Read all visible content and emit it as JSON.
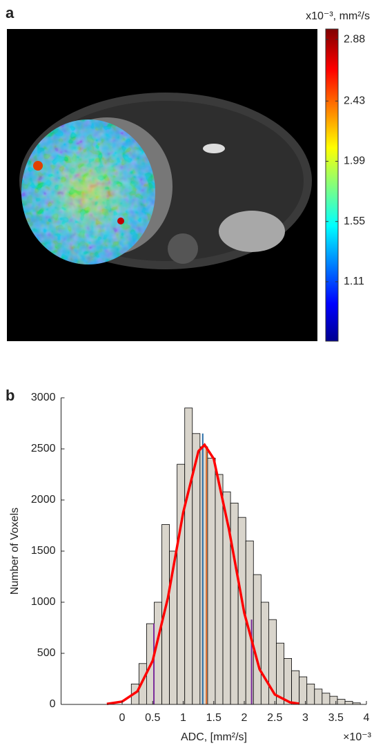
{
  "chart_data": [
    {
      "type": "image",
      "panel_label": "a",
      "colorbar_title": "x10⁻³, mm²/s",
      "clim": [
        0.676,
        2.956
      ],
      "cticks": [
        1.11,
        1.55,
        1.99,
        2.43,
        2.88
      ]
    },
    {
      "type": "histogram",
      "panel_label": "b",
      "x_label": "ADC, [mm²/s]",
      "y_label": "Number of Voxels",
      "x_multiplier": "×10⁻³",
      "color": "#d9d5cc",
      "edgecolor": "#000000",
      "bins": [
        0.15,
        0.275,
        0.4,
        0.525,
        0.65,
        0.775,
        0.9,
        1.025,
        1.15,
        1.275,
        1.4,
        1.525,
        1.65,
        1.775,
        1.9,
        2.025,
        2.15,
        2.275,
        2.4,
        2.525,
        2.65,
        2.775,
        2.9,
        3.025,
        3.15,
        3.275,
        3.4,
        3.525,
        3.65,
        3.775,
        3.9
      ],
      "values": [
        200,
        400,
        790,
        1000,
        1760,
        1500,
        2350,
        2900,
        2650,
        2520,
        2410,
        2250,
        2080,
        1970,
        1830,
        1600,
        1270,
        1000,
        830,
        600,
        450,
        330,
        270,
        200,
        150,
        110,
        80,
        50,
        30,
        15
      ],
      "fit": {
        "color": "#ff0000",
        "x": [
          -0.25,
          0,
          0.25,
          0.5,
          0.75,
          1.0,
          1.25,
          1.35,
          1.5,
          1.75,
          2.0,
          2.25,
          2.5,
          2.75,
          2.9
        ],
        "y": [
          5,
          28,
          128,
          427,
          1044,
          1878,
          2478,
          2540,
          2403,
          1711,
          895,
          344,
          97,
          20,
          7
        ]
      },
      "vlines": [
        {
          "x": 0.52,
          "y": 790,
          "color": "#7a2a9a"
        },
        {
          "x": 1.32,
          "y": 2650,
          "color": "#2a6fa8"
        },
        {
          "x": 1.38,
          "y": 2520,
          "color": "#e07030"
        },
        {
          "x": 2.12,
          "y": 830,
          "color": "#7a2a9a"
        }
      ],
      "xlim": [
        -1,
        4
      ],
      "ylim": [
        0,
        3000
      ],
      "xticks": [
        0,
        0.5,
        1,
        1.5,
        2,
        2.5,
        3,
        3.5,
        4
      ],
      "yticks": [
        0,
        500,
        1000,
        1500,
        2000,
        2500,
        3000
      ]
    }
  ]
}
